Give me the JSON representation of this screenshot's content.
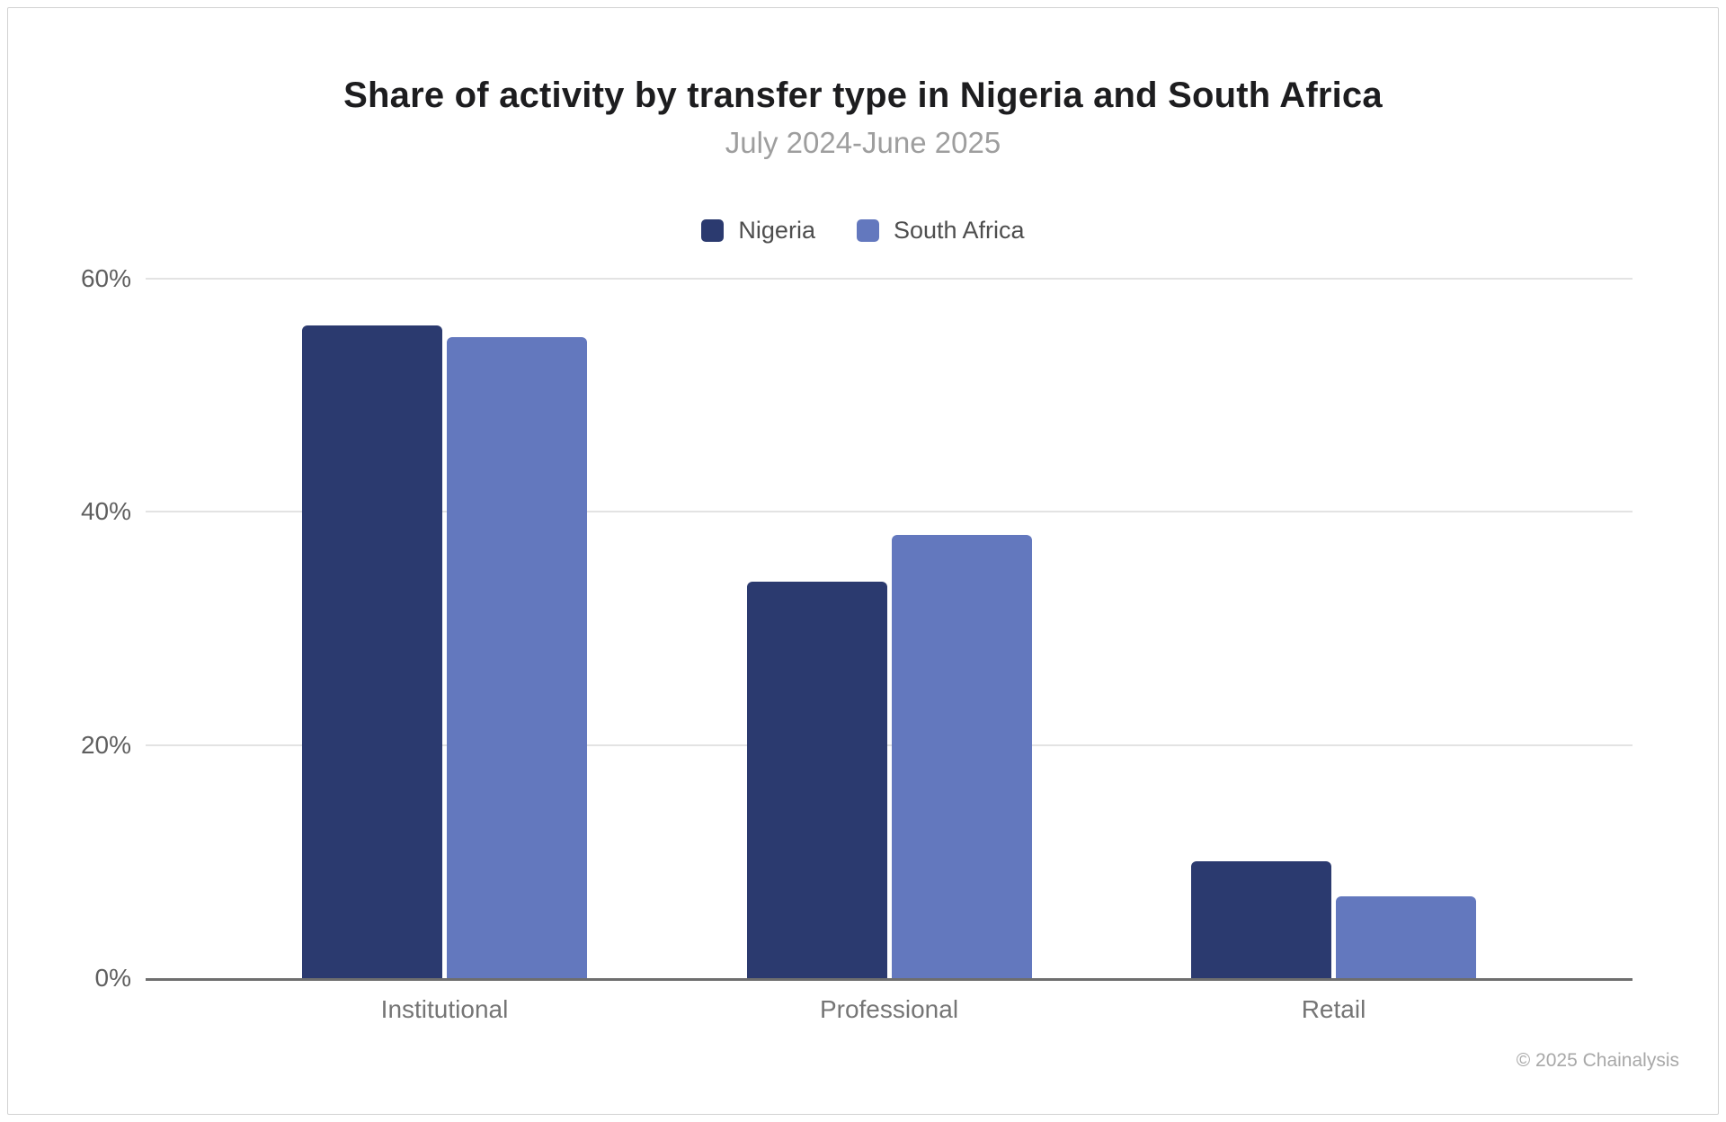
{
  "page": {
    "footer": "© 2025 Chainalysis"
  },
  "colors": {
    "nigeria": "#2b3a6f",
    "south_africa": "#6378be",
    "gridline": "#e3e3e3",
    "axis_line": "#6e6e6e",
    "tick_label": "#5f5f5f",
    "category_label": "#757575",
    "title_text": "#1d1d1f",
    "subtitle_text": "#9e9e9e",
    "footer_text": "#a8a8a8",
    "card_border": "#d2d2d2"
  },
  "chart_data": {
    "type": "bar",
    "title": "Share of activity by transfer type in Nigeria and South Africa",
    "subtitle": "July 2024-June 2025",
    "categories": [
      "Institutional",
      "Professional",
      "Retail"
    ],
    "series": [
      {
        "name": "Nigeria",
        "color": "#2b3a6f",
        "values": [
          56,
          34,
          10
        ]
      },
      {
        "name": "South Africa",
        "color": "#6378be",
        "values": [
          55,
          38,
          7
        ]
      }
    ],
    "xlabel": "",
    "ylabel": "",
    "ylim": [
      0,
      60
    ],
    "yticks": [
      "0%",
      "20%",
      "40%",
      "60%"
    ],
    "grid": true,
    "legend_position": "top",
    "bar_unit": "%"
  }
}
